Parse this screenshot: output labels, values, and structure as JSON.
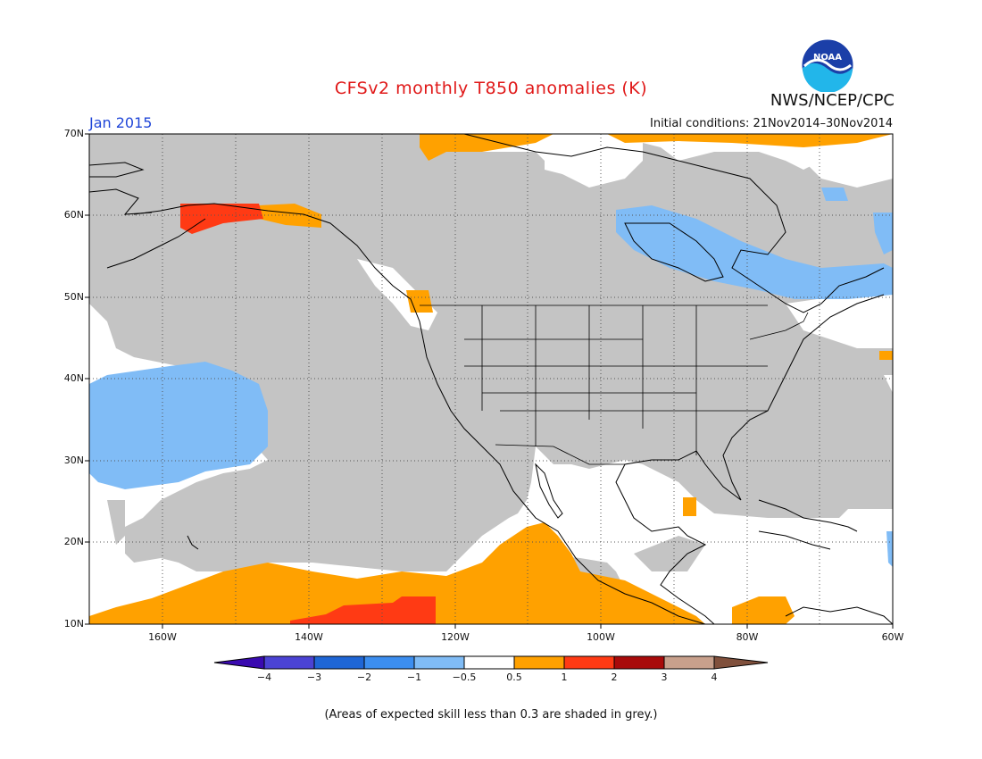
{
  "title": "CFSv2 monthly T850 anomalies (K)",
  "agency": "NWS/NCEP/CPC",
  "logo_text": "NOAA",
  "month": "Jan 2015",
  "initial_conditions": "Initial conditions: 21Nov2014–30Nov2014",
  "lat_labels": [
    "70N",
    "60N",
    "50N",
    "40N",
    "30N",
    "20N",
    "10N"
  ],
  "lon_labels": [
    "160W",
    "140W",
    "120W",
    "100W",
    "80W",
    "60W"
  ],
  "colorbar": {
    "labels": [
      "−4",
      "−3",
      "−2",
      "−1",
      "−0.5",
      "0.5",
      "1",
      "2",
      "3",
      "4"
    ],
    "colors": [
      "#3a0ab0",
      "#4b43d4",
      "#1f66d6",
      "#3c8ef0",
      "#80bcf6",
      "#ffffff",
      "#ffa100",
      "#ff3a14",
      "#a80a0a",
      "#c8a08c",
      "#80503c"
    ]
  },
  "footnote": "(Areas of expected skill less than 0.3 are shaded in grey.)",
  "colors": {
    "grey_low_skill": "#c4c4c4",
    "title_red": "#e01818",
    "month_blue": "#2046d8"
  }
}
